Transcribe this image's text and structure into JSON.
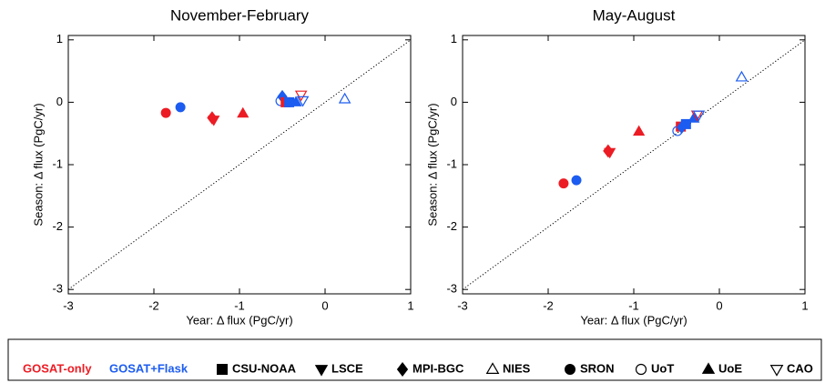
{
  "chart_data": [
    {
      "type": "scatter",
      "title": "November-February",
      "x_label": "Year: Δ flux (PgC/yr)",
      "y_label": "Season: Δ flux (PgC/yr)",
      "xlim": [
        -3,
        1
      ],
      "ylim": [
        -3.07,
        1.07
      ],
      "xticks": [
        -3,
        -2,
        -1,
        0,
        1
      ],
      "yticks": [
        -3,
        -2,
        -1,
        0,
        1
      ],
      "series": [
        {
          "name": "SRON",
          "group": "GOSAT-only",
          "x": [
            -1.86
          ],
          "y": [
            -0.17
          ]
        },
        {
          "name": "SRON",
          "group": "GOSAT+Flask",
          "x": [
            -1.69
          ],
          "y": [
            -0.08
          ]
        },
        {
          "name": "MPI-BGC",
          "group": "GOSAT-only",
          "x": [
            -1.32
          ],
          "y": [
            -0.25
          ]
        },
        {
          "name": "LSCE",
          "group": "GOSAT-only",
          "x": [
            -1.3
          ],
          "y": [
            -0.28
          ]
        },
        {
          "name": "UoE",
          "group": "GOSAT-only",
          "x": [
            -0.96
          ],
          "y": [
            -0.18
          ]
        },
        {
          "name": "MPI-BGC",
          "group": "GOSAT+Flask",
          "x": [
            -0.5
          ],
          "y": [
            0.09
          ]
        },
        {
          "name": "UoT",
          "group": "GOSAT+Flask",
          "x": [
            -0.52
          ],
          "y": [
            0.02
          ]
        },
        {
          "name": "CSU-NOAA",
          "group": "GOSAT-only",
          "x": [
            -0.46
          ],
          "y": [
            0.0
          ]
        },
        {
          "name": "CSU-NOAA",
          "group": "GOSAT+Flask",
          "x": [
            -0.42
          ],
          "y": [
            0.0
          ]
        },
        {
          "name": "UoE",
          "group": "GOSAT+Flask",
          "x": [
            -0.34
          ],
          "y": [
            0.0
          ]
        },
        {
          "name": "CAO",
          "group": "GOSAT-only",
          "x": [
            -0.28
          ],
          "y": [
            0.12
          ]
        },
        {
          "name": "CAO",
          "group": "GOSAT+Flask",
          "x": [
            -0.26
          ],
          "y": [
            0.03
          ]
        },
        {
          "name": "NIES",
          "group": "GOSAT+Flask",
          "x": [
            0.23
          ],
          "y": [
            0.05
          ]
        }
      ]
    },
    {
      "type": "scatter",
      "title": "May-August",
      "x_label": "Year: Δ flux (PgC/yr)",
      "y_label": "Season: Δ flux (PgC/yr)",
      "xlim": [
        -3,
        1
      ],
      "ylim": [
        -3.07,
        1.07
      ],
      "xticks": [
        -3,
        -2,
        -1,
        0,
        1
      ],
      "yticks": [
        -3,
        -2,
        -1,
        0,
        1
      ],
      "series": [
        {
          "name": "SRON",
          "group": "GOSAT-only",
          "x": [
            -1.82
          ],
          "y": [
            -1.3
          ]
        },
        {
          "name": "SRON",
          "group": "GOSAT+Flask",
          "x": [
            -1.67
          ],
          "y": [
            -1.25
          ]
        },
        {
          "name": "MPI-BGC",
          "group": "GOSAT-only",
          "x": [
            -1.3
          ],
          "y": [
            -0.78
          ]
        },
        {
          "name": "LSCE",
          "group": "GOSAT-only",
          "x": [
            -1.28
          ],
          "y": [
            -0.8
          ]
        },
        {
          "name": "UoE",
          "group": "GOSAT-only",
          "x": [
            -0.94
          ],
          "y": [
            -0.47
          ]
        },
        {
          "name": "UoT",
          "group": "GOSAT+Flask",
          "x": [
            -0.49
          ],
          "y": [
            -0.46
          ]
        },
        {
          "name": "CSU-NOAA",
          "group": "GOSAT-only",
          "x": [
            -0.45
          ],
          "y": [
            -0.39
          ]
        },
        {
          "name": "MPI-BGC",
          "group": "GOSAT+Flask",
          "x": [
            -0.44
          ],
          "y": [
            -0.4
          ]
        },
        {
          "name": "CSU-NOAA",
          "group": "GOSAT+Flask",
          "x": [
            -0.39
          ],
          "y": [
            -0.35
          ]
        },
        {
          "name": "UoE",
          "group": "GOSAT+Flask",
          "x": [
            -0.3
          ],
          "y": [
            -0.26
          ]
        },
        {
          "name": "CAO",
          "group": "GOSAT-only",
          "x": [
            -0.26
          ],
          "y": [
            -0.2
          ]
        },
        {
          "name": "CAO",
          "group": "GOSAT+Flask",
          "x": [
            -0.24
          ],
          "y": [
            -0.2
          ]
        },
        {
          "name": "NIES",
          "group": "GOSAT+Flask",
          "x": [
            0.26
          ],
          "y": [
            0.4
          ]
        }
      ]
    }
  ],
  "legend": {
    "groups": [
      {
        "name": "GOSAT-only",
        "color": "#ec1c24"
      },
      {
        "name": "GOSAT+Flask",
        "color": "#1c5cf0"
      }
    ],
    "models": [
      {
        "name": "CSU-NOAA",
        "marker": "square",
        "filled": true
      },
      {
        "name": "LSCE",
        "marker": "triangle-down",
        "filled": true
      },
      {
        "name": "MPI-BGC",
        "marker": "diamond",
        "filled": true
      },
      {
        "name": "NIES",
        "marker": "triangle-up",
        "filled": false
      },
      {
        "name": "SRON",
        "marker": "circle",
        "filled": true
      },
      {
        "name": "UoT",
        "marker": "circle",
        "filled": false
      },
      {
        "name": "UoE",
        "marker": "triangle-up",
        "filled": true
      },
      {
        "name": "CAO",
        "marker": "triangle-down",
        "filled": false
      }
    ]
  }
}
